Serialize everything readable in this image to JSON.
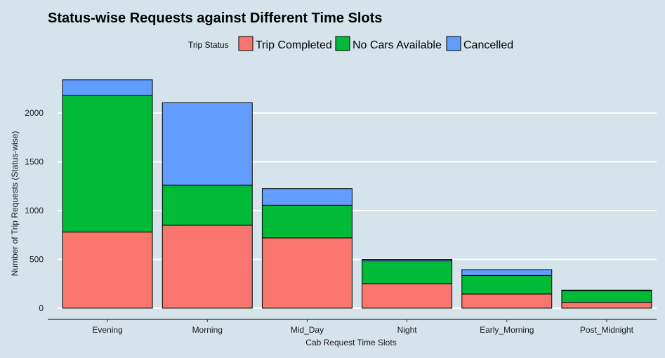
{
  "chart_data": {
    "type": "bar",
    "stacked": true,
    "title": "Status-wise Requests against Different Time Slots",
    "xlabel": "Cab Request Time Slots",
    "ylabel": "Number of Trip Requests (Status-wise)",
    "ylim": [
      0,
      2350
    ],
    "yticks": [
      0,
      500,
      1000,
      1500,
      2000
    ],
    "grid": "horizontal",
    "legend": {
      "title": "Trip Status",
      "position": "top"
    },
    "categories": [
      "Evening",
      "Morning",
      "Mid_Day",
      "Night",
      "Early_Morning",
      "Post_Midnight"
    ],
    "series": [
      {
        "name": "Trip Completed",
        "color": "#f8766d",
        "values": [
          780,
          850,
          720,
          250,
          145,
          60
        ]
      },
      {
        "name": "No Cars Available",
        "color": "#00ba38",
        "values": [
          1400,
          410,
          335,
          235,
          190,
          120
        ]
      },
      {
        "name": "Cancelled",
        "color": "#619cff",
        "values": [
          160,
          845,
          170,
          15,
          60,
          5
        ]
      }
    ]
  }
}
